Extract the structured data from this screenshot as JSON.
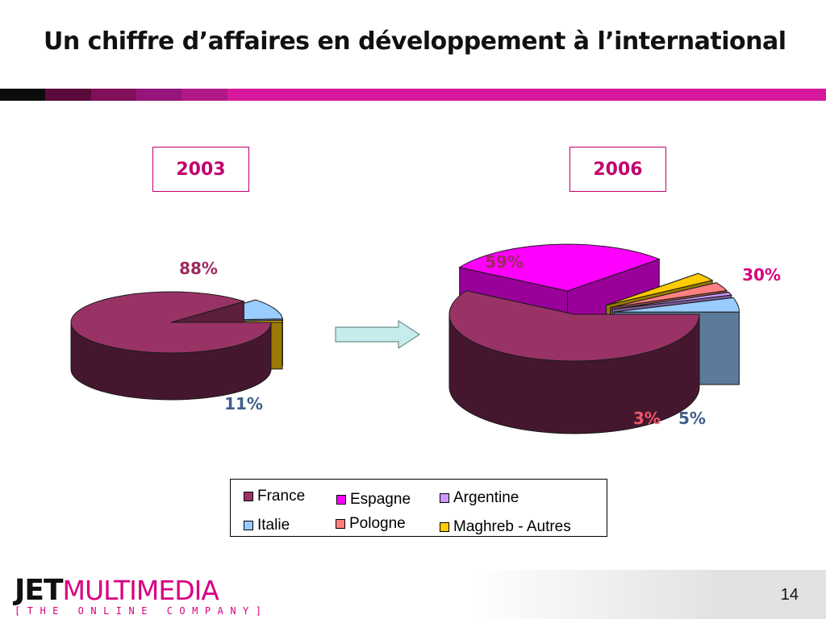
{
  "slide": {
    "title": "Un chiffre d’affaires en développement à l’international",
    "page_number": "14",
    "accent_color": "#d80080"
  },
  "logo": {
    "brand_bold": "JET",
    "brand_light": "MULTIMEDIA",
    "tagline": "[THE ONLINE COMPANY]"
  },
  "chart_data": [
    {
      "type": "pie",
      "title": "2003",
      "categories": [
        "France",
        "Italie",
        "Maghreb - Autres"
      ],
      "values": [
        88,
        11,
        1
      ],
      "data_labels": [
        {
          "category": "France",
          "text": "88%",
          "color": "#9c2a5e"
        },
        {
          "category": "Italie",
          "text": "11%",
          "color": "#3e5f8a"
        }
      ]
    },
    {
      "type": "pie",
      "title": "2006",
      "categories": [
        "France",
        "Espagne",
        "Maghreb - Autres",
        "Pologne",
        "Argentine",
        "Italie"
      ],
      "values": [
        59,
        30,
        3,
        3,
        1,
        5
      ],
      "data_labels": [
        {
          "category": "France",
          "text": "59%",
          "color": "#9c2a5e"
        },
        {
          "category": "Espagne",
          "text": "30%",
          "color": "#d80080"
        },
        {
          "category": "Pologne",
          "text": "3%",
          "color": "#f0566a"
        },
        {
          "category": "Italie",
          "text": "5%",
          "color": "#3e5f8a"
        }
      ]
    }
  ],
  "legend": {
    "items": [
      {
        "label": "France",
        "color": "#993366"
      },
      {
        "label": "Espagne",
        "color": "#ff00ff"
      },
      {
        "label": "Argentine",
        "color": "#cc99ff"
      },
      {
        "label": "Italie",
        "color": "#99ccff"
      },
      {
        "label": "Pologne",
        "color": "#ff8080"
      },
      {
        "label": "Maghreb - Autres",
        "color": "#ffcc00"
      }
    ]
  },
  "arrow": {
    "direction": "right",
    "color": "#c6ecec"
  }
}
